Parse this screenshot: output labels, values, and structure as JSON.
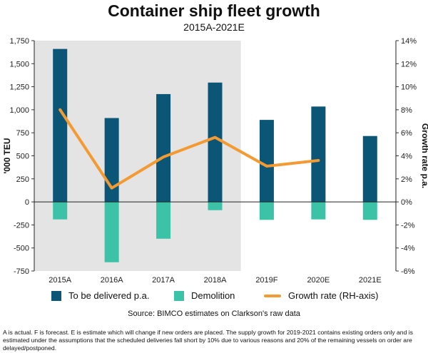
{
  "chart_data": {
    "type": "bar",
    "title": "Container ship fleet growth",
    "subtitle": "2015A-2021E",
    "categories": [
      "2015A",
      "2016A",
      "2017A",
      "2018A",
      "2019F",
      "2020E",
      "2021E"
    ],
    "series": [
      {
        "name": "To be delivered p.a.",
        "values": [
          1660,
          910,
          1170,
          1295,
          890,
          1035,
          715
        ],
        "axis": "left",
        "color": "#0b5577"
      },
      {
        "name": "Demolition",
        "values": [
          -190,
          -655,
          -400,
          -90,
          -195,
          -190,
          -195
        ],
        "axis": "left",
        "color": "#3cc2a6"
      },
      {
        "name": "Growth rate (RH-axis)",
        "values": [
          8.0,
          1.2,
          3.9,
          5.6,
          3.1,
          3.6,
          null
        ],
        "axis": "right",
        "type": "line",
        "color": "#f39a33"
      }
    ],
    "ylabel": "'000 TEU",
    "ylabel_right": "Growth rate p.a.",
    "ylim": [
      -750,
      1750
    ],
    "ylim_right": [
      -6,
      14
    ],
    "yticks": [
      -750,
      -500,
      -250,
      0,
      250,
      500,
      750,
      1000,
      1250,
      1500,
      1750
    ],
    "ytick_labels": [
      "-750",
      "-500",
      "-250",
      "0",
      "250",
      "500",
      "750",
      "1,000",
      "1,250",
      "1,500",
      "1,750"
    ],
    "yticks_right": [
      -6,
      -4,
      -2,
      0,
      2,
      4,
      6,
      8,
      10,
      12,
      14
    ],
    "ytick_labels_right": [
      "-6%",
      "-4%",
      "-2%",
      "0%",
      "2%",
      "4%",
      "6%",
      "8%",
      "10%",
      "12%",
      "14%"
    ],
    "shaded_categories": [
      "2015A",
      "2016A",
      "2017A",
      "2018A"
    ],
    "shade_color": "#e4e4e4",
    "legend_position": "bottom"
  },
  "source": "Source: BIMCO estimates on Clarkson's raw data",
  "footnote": "A is actual. F is forecast. E is estimate which will change if new orders are placed. The supply growth for 2019-2021 contains existing orders only and is estimated under the assumptions that the scheduled deliveries fall short by 10% due to various reasons and 20% of the remaining vessels on order are delayed/postponed."
}
